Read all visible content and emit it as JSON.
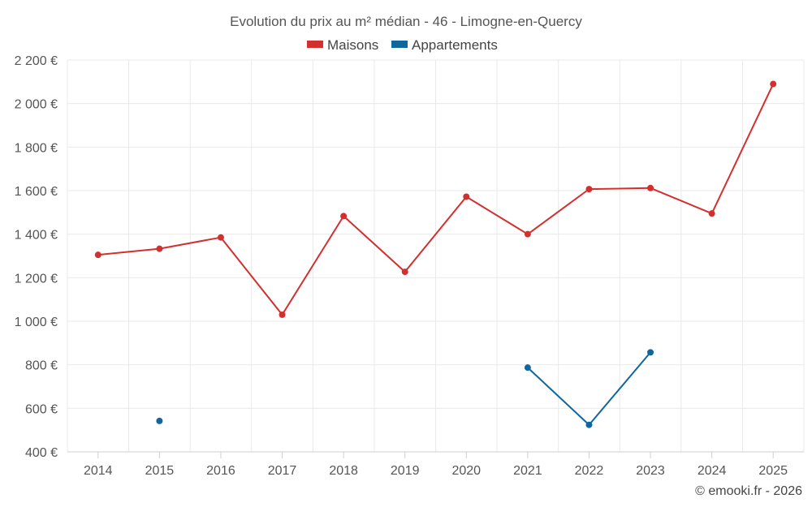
{
  "chart_data": {
    "type": "line",
    "title": "Evolution du prix au m² médian - 46 - Limogne-en-Quercy",
    "categories": [
      "2014",
      "2015",
      "2016",
      "2017",
      "2018",
      "2019",
      "2020",
      "2021",
      "2022",
      "2023",
      "2024",
      "2025"
    ],
    "y_ticks": [
      400,
      600,
      800,
      1000,
      1200,
      1400,
      1600,
      1800,
      2000,
      2200
    ],
    "y_tick_labels": [
      "400 €",
      "600 €",
      "800 €",
      "1 000 €",
      "1 200 €",
      "1 400 €",
      "1 600 €",
      "1 800 €",
      "2 000 €",
      "2 200 €"
    ],
    "ylim": [
      400,
      2200
    ],
    "xlabel": "",
    "ylabel": "",
    "grid": true,
    "legend_position": "top-center",
    "series": [
      {
        "name": "Maisons",
        "color": "#d32f2f",
        "values": [
          1305,
          1333,
          1385,
          1030,
          1483,
          1227,
          1572,
          1400,
          1607,
          1612,
          1495,
          2090
        ]
      },
      {
        "name": "Appartements",
        "color": "#0f67a0",
        "values": [
          null,
          542,
          null,
          null,
          null,
          null,
          null,
          787,
          524,
          857,
          null,
          null
        ]
      }
    ]
  },
  "credit": "© emooki.fr - 2026"
}
